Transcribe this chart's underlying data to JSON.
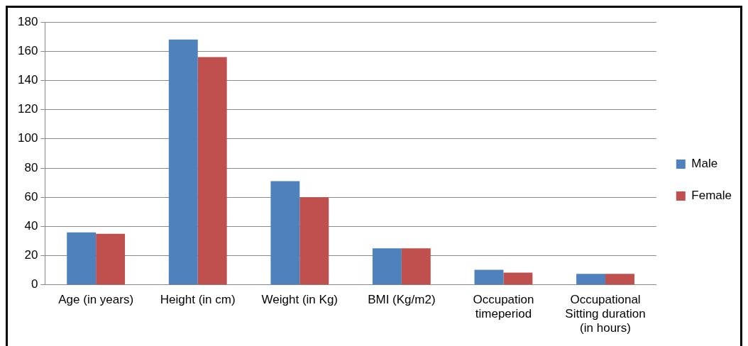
{
  "chart_data": {
    "type": "bar",
    "categories": [
      "Age (in years)",
      "Height (in cm)",
      "Weight (in Kg)",
      "BMI (Kg/m2)",
      "Occupation timeperiod",
      "Occupational Sitting duration (in hours)"
    ],
    "series": [
      {
        "name": "Male",
        "color": "#4f81bd",
        "values": [
          36,
          168,
          71,
          25,
          10.4,
          7.5
        ]
      },
      {
        "name": "Female",
        "color": "#c0504d",
        "values": [
          35,
          156,
          60,
          25,
          8.4,
          7.5
        ]
      }
    ],
    "ylim": [
      0,
      180
    ],
    "yticks": [
      0,
      20,
      40,
      60,
      80,
      100,
      120,
      140,
      160,
      180
    ],
    "grid": "y",
    "legend": "right"
  }
}
